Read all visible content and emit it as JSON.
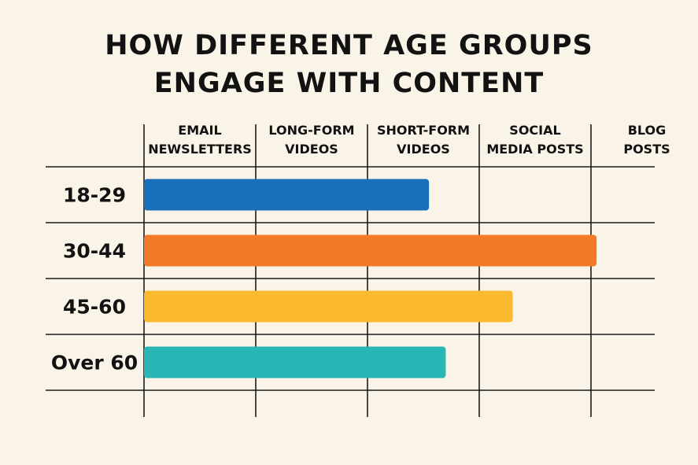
{
  "chart_data": {
    "type": "bar",
    "orientation": "horizontal",
    "title_lines": [
      "HOW DIFFERENT AGE GROUPS",
      "ENGAGE WITH CONTENT"
    ],
    "x_categories": [
      [
        "EMAIL",
        "NEWSLETTERS"
      ],
      [
        "LONG-FORM",
        "VIDEOS"
      ],
      [
        "SHORT-FORM",
        "VIDEOS"
      ],
      [
        "SOCIAL",
        "MEDIA POSTS"
      ],
      [
        "BLOG",
        "POSTS"
      ]
    ],
    "categories": [
      "18-29",
      "30-44",
      "45-60",
      "Over 60"
    ],
    "values": [
      2.55,
      4.05,
      3.3,
      2.7
    ],
    "colors": [
      "#1a6fbb",
      "#f27a28",
      "#fbb92e",
      "#2ab6b4"
    ],
    "xlim": [
      0,
      5
    ],
    "legend": "none"
  }
}
